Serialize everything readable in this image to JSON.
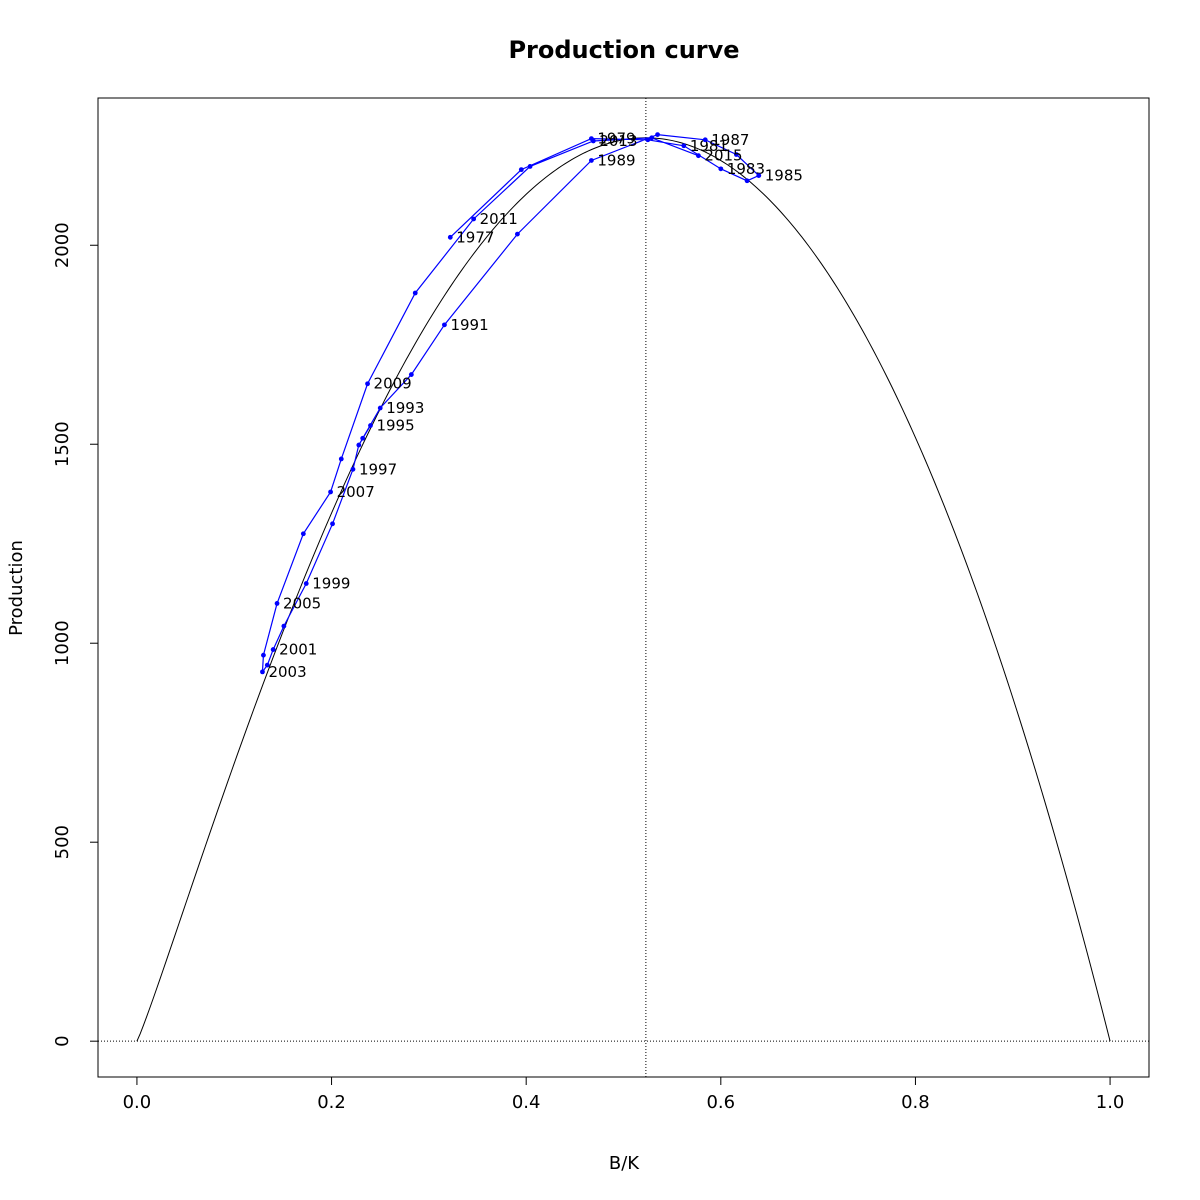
{
  "chart_data": {
    "type": "line",
    "title": "Production curve",
    "xlabel": "B/K",
    "ylabel": "Production",
    "xlim": [
      -0.04,
      1.04
    ],
    "ylim": [
      -90,
      2370
    ],
    "x_ticks": [
      "0.0",
      "0.2",
      "0.4",
      "0.6",
      "0.8",
      "1.0"
    ],
    "y_ticks": [
      "0",
      "500",
      "1000",
      "1500",
      "2000"
    ],
    "grid": false,
    "legend": "none",
    "reference_lines": {
      "vertical_x": 0.523,
      "horizontal_y": 0
    },
    "production_curve": {
      "name": "",
      "color": "#000000",
      "curve_x_max": 1.0,
      "peak_x": 0.523,
      "peak_y": 2270
    },
    "series": [
      {
        "name": "",
        "color": "#0000ff",
        "points": [
          {
            "x": 0.322,
            "y": 2020,
            "label": "1977"
          },
          {
            "x": 0.395,
            "y": 2190,
            "label": ""
          },
          {
            "x": 0.467,
            "y": 2268,
            "label": "1979"
          },
          {
            "x": 0.525,
            "y": 2265,
            "label": ""
          },
          {
            "x": 0.562,
            "y": 2250,
            "label": "1981"
          },
          {
            "x": 0.6,
            "y": 2192,
            "label": "1983"
          },
          {
            "x": 0.627,
            "y": 2162,
            "label": ""
          },
          {
            "x": 0.639,
            "y": 2175,
            "label": "1985"
          },
          {
            "x": 0.616,
            "y": 2228,
            "label": ""
          },
          {
            "x": 0.584,
            "y": 2265,
            "label": "1987"
          },
          {
            "x": 0.535,
            "y": 2278,
            "label": ""
          },
          {
            "x": 0.467,
            "y": 2213,
            "label": "1989"
          },
          {
            "x": 0.391,
            "y": 2028,
            "label": ""
          },
          {
            "x": 0.316,
            "y": 1800,
            "label": "1991"
          },
          {
            "x": 0.282,
            "y": 1675,
            "label": ""
          },
          {
            "x": 0.25,
            "y": 1591,
            "label": "1993"
          },
          {
            "x": 0.232,
            "y": 1515,
            "label": ""
          },
          {
            "x": 0.24,
            "y": 1547,
            "label": "1995"
          },
          {
            "x": 0.228,
            "y": 1498,
            "label": ""
          },
          {
            "x": 0.222,
            "y": 1437,
            "label": "1997"
          },
          {
            "x": 0.201,
            "y": 1300,
            "label": ""
          },
          {
            "x": 0.174,
            "y": 1150,
            "label": "1999"
          },
          {
            "x": 0.151,
            "y": 1043,
            "label": ""
          },
          {
            "x": 0.14,
            "y": 984,
            "label": "2001"
          },
          {
            "x": 0.134,
            "y": 945,
            "label": ""
          },
          {
            "x": 0.129,
            "y": 928,
            "label": "2003"
          },
          {
            "x": 0.13,
            "y": 970,
            "label": ""
          },
          {
            "x": 0.144,
            "y": 1100,
            "label": "2005"
          },
          {
            "x": 0.171,
            "y": 1275,
            "label": ""
          },
          {
            "x": 0.199,
            "y": 1380,
            "label": "2007"
          },
          {
            "x": 0.21,
            "y": 1463,
            "label": ""
          },
          {
            "x": 0.237,
            "y": 1652,
            "label": "2009"
          },
          {
            "x": 0.286,
            "y": 1880,
            "label": ""
          },
          {
            "x": 0.346,
            "y": 2066,
            "label": "2011"
          },
          {
            "x": 0.404,
            "y": 2198,
            "label": ""
          },
          {
            "x": 0.469,
            "y": 2262,
            "label": "2013"
          },
          {
            "x": 0.529,
            "y": 2270,
            "label": ""
          },
          {
            "x": 0.577,
            "y": 2225,
            "label": "2015"
          }
        ]
      }
    ]
  }
}
